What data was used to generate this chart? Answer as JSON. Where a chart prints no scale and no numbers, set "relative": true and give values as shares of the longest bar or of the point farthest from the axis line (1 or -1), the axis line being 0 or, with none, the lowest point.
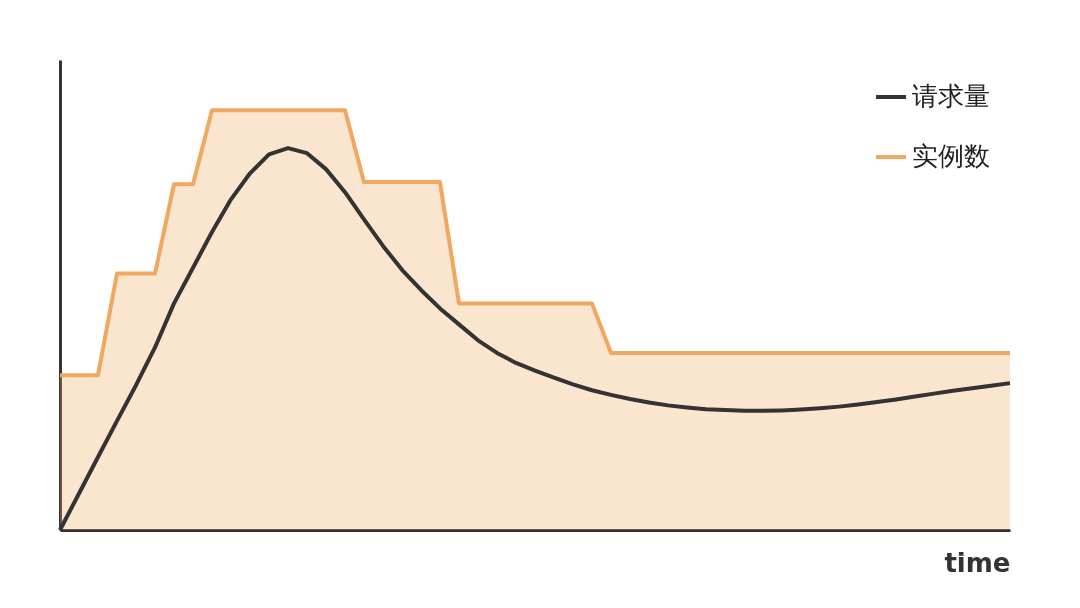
{
  "chart_data": {
    "type": "line",
    "xlabel": "time",
    "relative": true,
    "grid": false,
    "legend": "top right",
    "categories": [
      null,
      null,
      null,
      null,
      null,
      null,
      null,
      null,
      null,
      null,
      null,
      null,
      null,
      null,
      null,
      null,
      null,
      null,
      null,
      null,
      null,
      null,
      null,
      null,
      null,
      null,
      null,
      null,
      null,
      null,
      null,
      null,
      null,
      null,
      null,
      null,
      null,
      null,
      null,
      null,
      null,
      null,
      null,
      null,
      null,
      null,
      null,
      null,
      null,
      null,
      null
    ],
    "series": [
      {
        "name": "请求量",
        "color": "#333333",
        "values": [
          0,
          0.087,
          0.174,
          0.26,
          0.345,
          0.435,
          0.54,
          0.625,
          0.71,
          0.788,
          0.85,
          0.895,
          0.91,
          0.898,
          0.86,
          0.805,
          0.74,
          0.677,
          0.62,
          0.572,
          0.528,
          0.49,
          0.452,
          0.422,
          0.398,
          0.38,
          0.363,
          0.347,
          0.333,
          0.322,
          0.312,
          0.304,
          0.297,
          0.292,
          0.288,
          0.286,
          0.284,
          0.284,
          0.285,
          0.287,
          0.29,
          0.294,
          0.299,
          0.305,
          0.311,
          0.318,
          0.325,
          0.332,
          0.338,
          0.344,
          0.35
        ]
      },
      {
        "name": "实例数",
        "type": "area",
        "color": "#f0a860",
        "values": [
          0.369,
          0.369,
          0.369,
          0.611,
          0.611,
          0.611,
          0.824,
          0.824,
          1.0,
          1.0,
          1.0,
          1.0,
          1.0,
          1.0,
          1.0,
          1.0,
          0.829,
          0.829,
          0.829,
          0.829,
          0.829,
          0.54,
          0.54,
          0.54,
          0.54,
          0.54,
          0.54,
          0.54,
          0.54,
          0.422,
          0.422,
          0.422,
          0.422,
          0.422,
          0.422,
          0.422,
          0.422,
          0.422,
          0.422,
          0.422,
          0.422,
          0.422,
          0.422,
          0.422,
          0.422,
          0.422,
          0.422,
          0.422,
          0.422,
          0.422,
          0.422
        ]
      }
    ]
  }
}
